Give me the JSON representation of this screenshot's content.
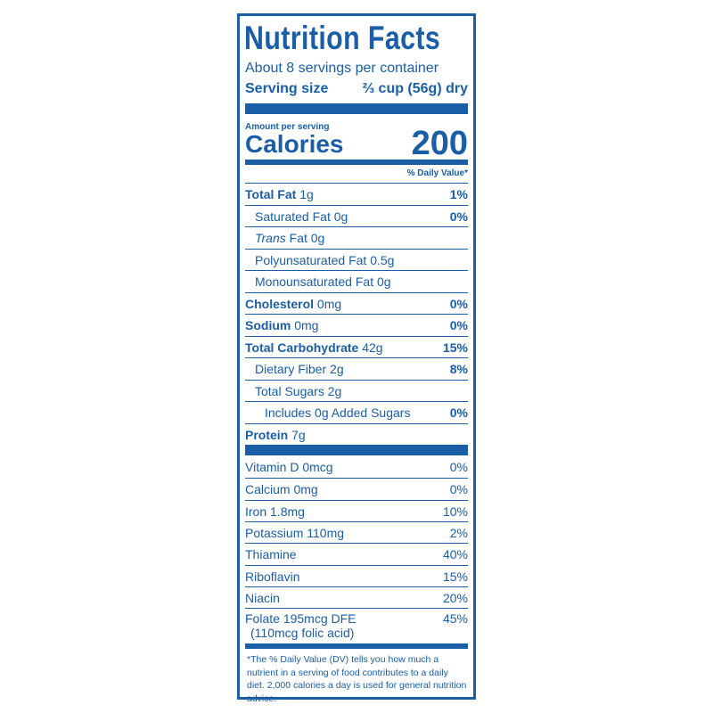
{
  "title": "Nutrition Facts",
  "servings": "About 8 servings per container",
  "serving_size": {
    "label": "Serving size",
    "value": "⅔ cup (56g) dry"
  },
  "amount_per_serving": "Amount per serving",
  "calories": {
    "label": "Calories",
    "value": "200"
  },
  "dv_header": "% Daily Value*",
  "nutrients": [
    {
      "name": "Total Fat",
      "amount": "1g",
      "dv": "1%",
      "bold": true,
      "indent": 0
    },
    {
      "name": "Saturated Fat",
      "amount": "0g",
      "dv": "0%",
      "bold": false,
      "indent": 1
    },
    {
      "name_italic": "Trans",
      "name": "Fat",
      "amount": "0g",
      "bold": false,
      "indent": 1
    },
    {
      "name": "Polyunsaturated Fat",
      "amount": "0.5g",
      "bold": false,
      "indent": 1
    },
    {
      "name": "Monounsaturated Fat",
      "amount": "0g",
      "bold": false,
      "indent": 1
    },
    {
      "name": "Cholesterol",
      "amount": "0mg",
      "dv": "0%",
      "bold": true,
      "indent": 0
    },
    {
      "name": "Sodium",
      "amount": "0mg",
      "dv": "0%",
      "bold": true,
      "indent": 0
    },
    {
      "name": "Total Carbohydrate",
      "amount": "42g",
      "dv": "15%",
      "bold": true,
      "indent": 0
    },
    {
      "name": "Dietary Fiber",
      "amount": "2g",
      "dv": "8%",
      "bold": false,
      "indent": 1
    },
    {
      "name": "Total Sugars",
      "amount": "2g",
      "bold": false,
      "indent": 1
    },
    {
      "name": "Includes 0g Added Sugars",
      "dv": "0%",
      "bold": false,
      "indent": 2
    },
    {
      "name": "Protein",
      "amount": "7g",
      "bold": true,
      "indent": 0
    }
  ],
  "vitamins": [
    {
      "name": "Vitamin D",
      "amount": "0mcg",
      "dv": "0%"
    },
    {
      "name": "Calcium",
      "amount": "0mg",
      "dv": "0%"
    },
    {
      "name": "Iron",
      "amount": "1.8mg",
      "dv": "10%"
    },
    {
      "name": "Potassium",
      "amount": "110mg",
      "dv": "2%"
    },
    {
      "name": "Thiamine",
      "dv": "40%"
    },
    {
      "name": "Riboflavin",
      "dv": "15%"
    },
    {
      "name": "Niacin",
      "dv": "20%"
    },
    {
      "name": "Folate",
      "amount": "195mcg DFE",
      "note": "(110mcg folic acid)",
      "dv": "45%"
    }
  ],
  "footnote": "*The % Daily Value (DV) tells you how much a nutrient in a serving of food contributes to a daily diet. 2,000 calories a day is used for general nutrition advice."
}
